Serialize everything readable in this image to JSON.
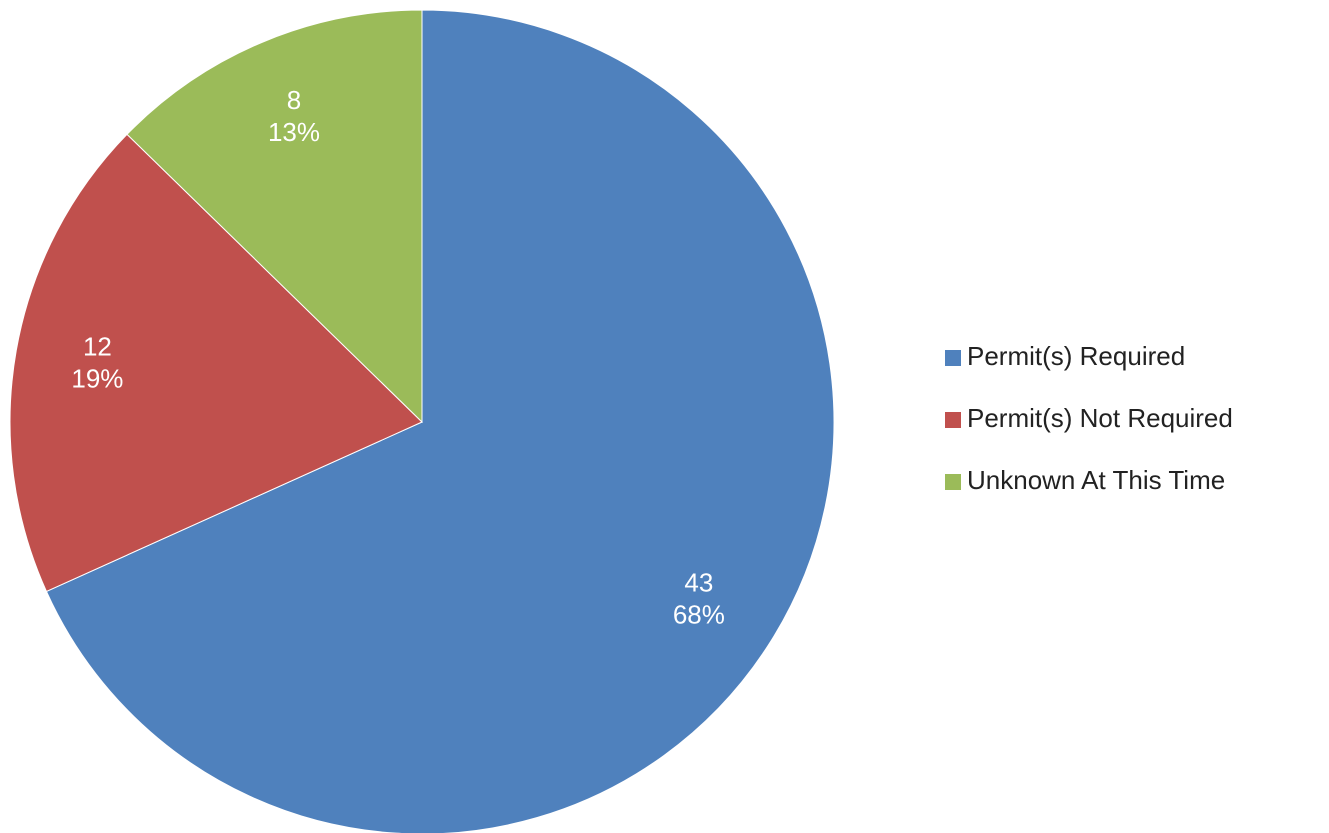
{
  "chart_data": {
    "type": "pie",
    "categories": [
      "Permit(s) Required",
      "Permit(s) Not Required",
      "Unknown At This Time"
    ],
    "values": [
      43,
      12,
      8
    ],
    "percentages": [
      68,
      19,
      13
    ],
    "percentage_labels": [
      "68%",
      "19%",
      "13%"
    ],
    "colors": [
      "#4f81bd",
      "#c0504d",
      "#9bbb59"
    ],
    "legend": "right"
  }
}
